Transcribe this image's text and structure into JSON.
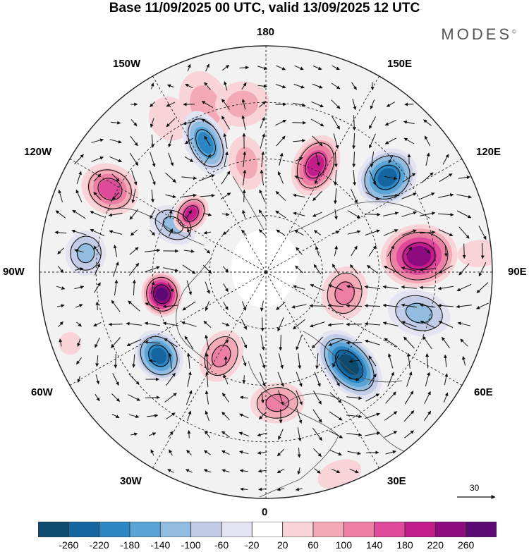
{
  "title": "Base 11/09/2025 00 UTC, valid 13/09/2025 12 UTC",
  "brand": "MODES",
  "brand_mark": "©",
  "longitude_labels": {
    "top": "180",
    "bottom": "0",
    "left": "90W",
    "right": "90E",
    "upper_left_1": "150W",
    "upper_left_2": "120W",
    "upper_right_1": "150E",
    "upper_right_2": "120E",
    "lower_left_1": "60W",
    "lower_left_2": "30W",
    "lower_right_1": "60E",
    "lower_right_2": "30E"
  },
  "reference_vector": {
    "value": "30"
  },
  "colorbar": {
    "ticks": [
      "-260",
      "-220",
      "-180",
      "-140",
      "-100",
      "-60",
      "-20",
      "20",
      "60",
      "100",
      "140",
      "180",
      "220",
      "260"
    ],
    "colors": [
      "#0d4a6e",
      "#1565a0",
      "#2c86c4",
      "#5aa5d6",
      "#93bde0",
      "#c3cce6",
      "#e3e3f2",
      "#ffffff",
      "#f8d4d8",
      "#f4aab6",
      "#ee7fa4",
      "#e04a9b",
      "#c21d8a",
      "#8d0a7f",
      "#5b0a73"
    ]
  },
  "anomalies": [
    {
      "lon": 200,
      "r": 0.78,
      "v": 60,
      "sx": 0.11,
      "sy": 0.16
    },
    {
      "lon": 212,
      "r": 0.8,
      "v": 40,
      "sx": 0.09,
      "sy": 0.1
    },
    {
      "lon": 190,
      "r": 0.49,
      "v": 80,
      "sx": 0.08,
      "sy": 0.12
    },
    {
      "lon": 155,
      "r": 0.52,
      "v": 180,
      "sx": 0.1,
      "sy": 0.14
    },
    {
      "lon": 128,
      "r": 0.68,
      "v": -220,
      "sx": 0.12,
      "sy": 0.14
    },
    {
      "lon": 96,
      "r": 0.68,
      "v": 240,
      "sx": 0.14,
      "sy": 0.17
    },
    {
      "lon": 75,
      "r": 0.7,
      "v": -100,
      "sx": 0.1,
      "sy": 0.14
    },
    {
      "lon": 75,
      "r": 0.36,
      "v": 110,
      "sx": 0.12,
      "sy": 0.1
    },
    {
      "lon": 42,
      "r": 0.55,
      "v": -260,
      "sx": 0.11,
      "sy": 0.18
    },
    {
      "lon": 5,
      "r": 0.58,
      "v": 120,
      "sx": 0.12,
      "sy": 0.09
    },
    {
      "lon": -28,
      "r": 0.42,
      "v": 110,
      "sx": 0.09,
      "sy": 0.12
    },
    {
      "lon": -52,
      "r": 0.6,
      "v": -230,
      "sx": 0.12,
      "sy": 0.1
    },
    {
      "lon": -78,
      "r": 0.47,
      "v": 260,
      "sx": 0.1,
      "sy": 0.09
    },
    {
      "lon": -96,
      "r": 0.8,
      "v": -110,
      "sx": 0.1,
      "sy": 0.09
    },
    {
      "lon": -117,
      "r": 0.46,
      "v": -120,
      "sx": 0.08,
      "sy": 0.11
    },
    {
      "lon": -128,
      "r": 0.42,
      "v": 180,
      "sx": 0.09,
      "sy": 0.07
    },
    {
      "lon": -118,
      "r": 0.78,
      "v": 140,
      "sx": 0.11,
      "sy": 0.13
    },
    {
      "lon": -155,
      "r": 0.63,
      "v": -200,
      "sx": 0.09,
      "sy": 0.15
    },
    {
      "lon": -172,
      "r": 0.75,
      "v": 70,
      "sx": 0.12,
      "sy": 0.1
    },
    {
      "lon": 95,
      "r": 0.95,
      "v": 30,
      "sx": 0.06,
      "sy": 0.1
    },
    {
      "lon": 20,
      "r": 0.95,
      "v": 25,
      "sx": 0.1,
      "sy": 0.06
    },
    {
      "lon": -70,
      "r": 0.92,
      "v": 30,
      "sx": 0.05,
      "sy": 0.05
    }
  ]
}
